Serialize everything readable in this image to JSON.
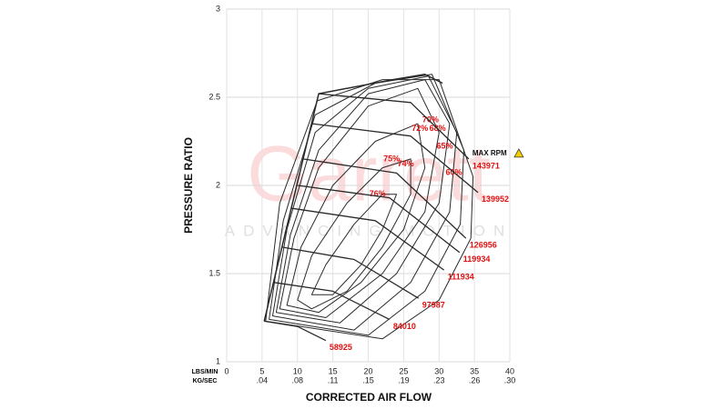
{
  "chart_data": {
    "type": "compressor-map",
    "xlabel": "CORRECTED AIR FLOW",
    "ylabel": "PRESSURE RATIO",
    "xunit_label": "LBS/MIN",
    "x2unit_label": "KG/SEC",
    "watermark": "Garrett",
    "watermark_sub": "ADVANCING MOTION",
    "annotation": "MAX RPM",
    "xlim": [
      0,
      40
    ],
    "ylim": [
      1,
      3
    ],
    "xticks": [
      0,
      5,
      10,
      15,
      20,
      25,
      30,
      35,
      40
    ],
    "x2ticks": [
      {
        "value": 5,
        "label": ".04"
      },
      {
        "value": 10,
        "label": ".08"
      },
      {
        "value": 15,
        "label": ".11"
      },
      {
        "value": 20,
        "label": ".15"
      },
      {
        "value": 25,
        "label": ".19"
      },
      {
        "value": 30,
        "label": ".23"
      },
      {
        "value": 35,
        "label": ".26"
      },
      {
        "value": 40,
        "label": ".30"
      }
    ],
    "yticks": [
      1,
      1.5,
      2,
      2.5,
      3
    ],
    "grid": true,
    "line_color": "#2a2a2a",
    "label_color": "#e01010",
    "surge_line": {
      "x": [
        5.3,
        13,
        23.5,
        28,
        30.5
      ],
      "y": [
        1.23,
        2.52,
        2.6,
        2.63,
        2.58
      ]
    },
    "speed_lines": [
      {
        "name": "58925",
        "x": [
          5.3,
          10,
          14
        ],
        "y": [
          1.23,
          1.2,
          1.12
        ]
      },
      {
        "name": "84010",
        "x": [
          6.6,
          15,
          23
        ],
        "y": [
          1.45,
          1.4,
          1.24
        ]
      },
      {
        "name": "97987",
        "x": [
          7.8,
          18,
          27.1
        ],
        "y": [
          1.65,
          1.58,
          1.36
        ]
      },
      {
        "name": "111934",
        "x": [
          9.2,
          21,
          30.7
        ],
        "y": [
          1.87,
          1.8,
          1.52
        ]
      },
      {
        "name": "119934",
        "x": [
          10,
          23,
          32.9
        ],
        "y": [
          2.0,
          1.93,
          1.62
        ]
      },
      {
        "name": "126956",
        "x": [
          10.8,
          24,
          33.8
        ],
        "y": [
          2.15,
          2.07,
          1.7
        ]
      },
      {
        "name": "139952",
        "x": [
          12.1,
          26,
          35.5
        ],
        "y": [
          2.35,
          2.28,
          1.96
        ]
      },
      {
        "name": "143971",
        "x": [
          13,
          26,
          34.2
        ],
        "y": [
          2.52,
          2.47,
          2.15
        ]
      }
    ],
    "efficiency_islands": [
      {
        "name": "76%",
        "x": [
          12,
          14,
          18,
          22,
          24,
          22,
          19,
          15
        ],
        "y": [
          1.38,
          1.55,
          1.78,
          1.95,
          1.95,
          1.75,
          1.55,
          1.38
        ]
      },
      {
        "name": "75%",
        "x": [
          10,
          12,
          17,
          22,
          26,
          26,
          22,
          17,
          12
        ],
        "y": [
          1.35,
          1.6,
          1.9,
          2.1,
          2.15,
          1.95,
          1.65,
          1.4,
          1.3
        ]
      },
      {
        "name": "74%",
        "x": [
          8.5,
          10.5,
          15,
          21,
          27,
          28,
          25,
          19,
          13
        ],
        "y": [
          1.32,
          1.65,
          2.0,
          2.25,
          2.35,
          2.1,
          1.75,
          1.45,
          1.28
        ]
      },
      {
        "name": "72%",
        "x": [
          7.5,
          9.5,
          13,
          20,
          27,
          30,
          28,
          22,
          14
        ],
        "y": [
          1.3,
          1.7,
          2.1,
          2.45,
          2.55,
          2.3,
          1.85,
          1.5,
          1.25
        ]
      },
      {
        "name": "70%",
        "x": [
          7,
          9,
          13,
          20,
          28,
          31.5,
          30,
          24,
          16
        ],
        "y": [
          1.28,
          1.72,
          2.2,
          2.52,
          2.6,
          2.35,
          1.9,
          1.5,
          1.22
        ]
      },
      {
        "name": "68%",
        "x": [
          6.5,
          8.5,
          12.5,
          20,
          28.5,
          32.5,
          31.5,
          26,
          18
        ],
        "y": [
          1.26,
          1.75,
          2.3,
          2.55,
          2.62,
          2.3,
          1.85,
          1.45,
          1.18
        ]
      },
      {
        "name": "65%",
        "x": [
          6,
          8,
          12.5,
          21,
          29,
          33.5,
          33,
          28,
          20
        ],
        "y": [
          1.24,
          1.8,
          2.4,
          2.58,
          2.63,
          2.2,
          1.78,
          1.4,
          1.15
        ]
      },
      {
        "name": "60%",
        "x": [
          5.5,
          7.5,
          12.8,
          22,
          30,
          34.8,
          34.5,
          30,
          22
        ],
        "y": [
          1.23,
          1.9,
          2.48,
          2.6,
          2.6,
          2.05,
          1.7,
          1.35,
          1.13
        ]
      }
    ]
  }
}
